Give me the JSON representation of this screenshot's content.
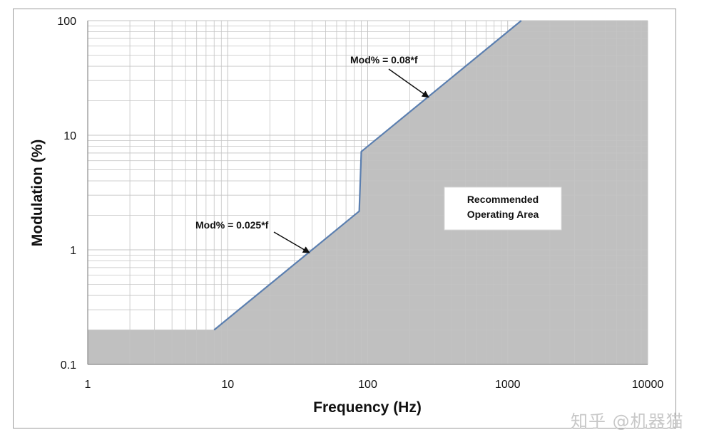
{
  "chart_data": {
    "type": "line",
    "title": "",
    "xlabel": "Frequency (Hz)",
    "ylabel": "Modulation (%)",
    "xscale": "log",
    "yscale": "log",
    "xlim": [
      1,
      10000
    ],
    "ylim": [
      0.1,
      100
    ],
    "x_tick_labels": [
      "1",
      "10",
      "100",
      "1000",
      "10000"
    ],
    "y_tick_labels": [
      "0.1",
      "1",
      "10",
      "100"
    ],
    "grid": true,
    "series": [
      {
        "x": [
          1,
          8,
          87,
          90,
          1250
        ],
        "y": [
          0.2,
          0.2,
          2.175,
          7.2,
          100
        ],
        "color": "#5b7fb0",
        "fill": "#c0c0c0"
      }
    ],
    "annotations": [
      {
        "text": "Mod% = 0.025*f",
        "arrow_to": [
          38,
          0.95
        ]
      },
      {
        "text": "Mod% = 0.08*f",
        "arrow_to": [
          270,
          21.6
        ]
      }
    ],
    "area_label": [
      "Recommended",
      "Operating Area"
    ]
  },
  "colors": {
    "line": "#5b7fb0",
    "area": "#c0c0c0",
    "grid": "#c4c4c4",
    "frame": "#9a9a9a"
  },
  "watermark": "知乎 @机器猫"
}
